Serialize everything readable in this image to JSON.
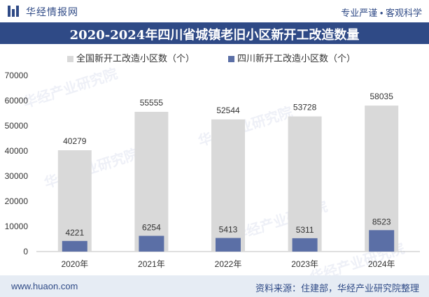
{
  "header": {
    "brand": "华经情报网",
    "slogan": "专业严谨 • 客观科学"
  },
  "footer": {
    "url": "www.huaon.com",
    "source": "资料来源：住建部，华经产业研究院整理"
  },
  "watermark": {
    "text": "华经产业研究院"
  },
  "colors": {
    "brand": "#2f4a86",
    "series_national": "#d9d9d9",
    "series_sichuan": "#5b6fa6"
  },
  "chart_data": {
    "type": "bar",
    "title": "2020-2024年四川省城镇老旧小区新开工改造数量",
    "categories": [
      "2020年",
      "2021年",
      "2022年",
      "2023年",
      "2024年"
    ],
    "series": [
      {
        "name": "全国新开工改造小区数（个）",
        "values": [
          40279,
          55555,
          52544,
          53728,
          58035
        ],
        "color": "#d9d9d9"
      },
      {
        "name": "四川新开工改造小区数（个）",
        "values": [
          4221,
          6254,
          5413,
          5311,
          8523
        ],
        "color": "#5b6fa6"
      }
    ],
    "ylim": [
      0,
      70000
    ],
    "yticks": [
      0,
      10000,
      20000,
      30000,
      40000,
      50000,
      60000,
      70000
    ],
    "xlabel": "",
    "ylabel": "",
    "grid": false,
    "legend": "top"
  }
}
